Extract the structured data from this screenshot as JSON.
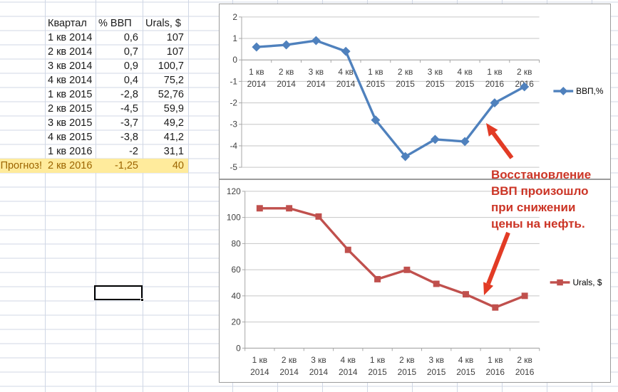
{
  "colors": {
    "sheet_gridline": "#D0D7E5",
    "chart_border": "#9C9C9C",
    "chart_gridline": "#C6C6C6",
    "axis_line": "#A6A6A6",
    "axis_text": "#404040",
    "gdp_series_blue": "#4F81BD",
    "urals_series_red": "#C0504D",
    "annotation_red": "#CC3526",
    "arrow_red": "#E23B25",
    "highlight_bg": "#FFEB9C",
    "highlight_text": "#9C6500"
  },
  "table": {
    "headers": {
      "note": "",
      "quarter": "Квартал",
      "gdp": "% ВВП",
      "urals": "Urals, $"
    },
    "rows": [
      {
        "note": "",
        "quarter": "1 кв 2014",
        "gdp": "0,6",
        "urals": "107",
        "highlight": false
      },
      {
        "note": "",
        "quarter": "2 кв 2014",
        "gdp": "0,7",
        "urals": "107",
        "highlight": false
      },
      {
        "note": "",
        "quarter": "3 кв 2014",
        "gdp": "0,9",
        "urals": "100,7",
        "highlight": false
      },
      {
        "note": "",
        "quarter": "4 кв 2014",
        "gdp": "0,4",
        "urals": "75,2",
        "highlight": false
      },
      {
        "note": "",
        "quarter": "1 кв 2015",
        "gdp": "-2,8",
        "urals": "52,76",
        "highlight": false
      },
      {
        "note": "",
        "quarter": "2 кв 2015",
        "gdp": "-4,5",
        "urals": "59,9",
        "highlight": false
      },
      {
        "note": "",
        "quarter": "3 кв 2015",
        "gdp": "-3,7",
        "urals": "49,2",
        "highlight": false
      },
      {
        "note": "",
        "quarter": "4 кв 2015",
        "gdp": "-3,8",
        "urals": "41,2",
        "highlight": false
      },
      {
        "note": "",
        "quarter": "1 кв 2016",
        "gdp": "-2",
        "urals": "31,1",
        "highlight": false
      },
      {
        "note": "Прогноз!",
        "quarter": "2 кв 2016",
        "gdp": "-1,25",
        "urals": "40",
        "highlight": true
      }
    ]
  },
  "chart_data": [
    {
      "type": "line",
      "title": "",
      "categories": [
        "1 кв 2014",
        "2 кв 2014",
        "3 кв 2014",
        "4 кв 2014",
        "1 кв 2015",
        "2 кв 2015",
        "3 кв 2015",
        "4 кв 2015",
        "1 кв 2016",
        "2 кв 2016"
      ],
      "series": [
        {
          "name": "ВВП,%",
          "values": [
            0.6,
            0.7,
            0.9,
            0.4,
            -2.8,
            -4.5,
            -3.7,
            -3.8,
            -2,
            -1.25
          ],
          "color": "#4F81BD",
          "marker": "diamond"
        }
      ],
      "ylim": [
        -5,
        2
      ],
      "ytick_step": 1,
      "grid": true,
      "legend_position": "right"
    },
    {
      "type": "line",
      "title": "",
      "categories": [
        "1 кв 2014",
        "2 кв 2014",
        "3 кв 2014",
        "4 кв 2014",
        "1 кв 2015",
        "2 кв 2015",
        "3 кв 2015",
        "4 кв 2015",
        "1 кв 2016",
        "2 кв 2016"
      ],
      "series": [
        {
          "name": "Urals, $",
          "values": [
            107,
            107,
            100.7,
            75.2,
            52.76,
            59.9,
            49.2,
            41.2,
            31.1,
            40
          ],
          "color": "#C0504D",
          "marker": "square"
        }
      ],
      "ylim": [
        0,
        120
      ],
      "ytick_step": 20,
      "grid": true,
      "legend_position": "right"
    }
  ],
  "annotation": {
    "lines": [
      "Восстановление",
      "ВВП произошло",
      "при снижении",
      "цены на нефть."
    ]
  }
}
